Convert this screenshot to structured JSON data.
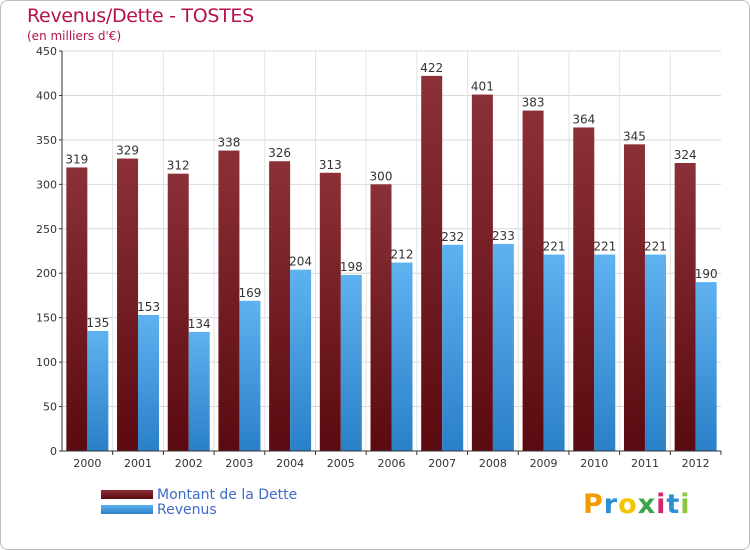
{
  "title": "Revenus/Dette - TOSTES",
  "subtitle": "(en milliers d'€)",
  "colors": {
    "dette": "#7a1e26",
    "revenus": "#3f9be6",
    "title": "#b5124f",
    "legend_text": "#3f6ac8"
  },
  "logo": {
    "text": "Proxiti",
    "letters": [
      "P",
      "r",
      "o",
      "x",
      "i",
      "t",
      "i"
    ],
    "letter_colors": [
      "#f29a00",
      "#2b8fd6",
      "#f2c500",
      "#3aa54a",
      "#d6246e",
      "#2b8fd6",
      "#8bc43f"
    ]
  },
  "chart_data": {
    "type": "bar",
    "categories": [
      "2000",
      "2001",
      "2002",
      "2003",
      "2004",
      "2005",
      "2006",
      "2007",
      "2008",
      "2009",
      "2010",
      "2011",
      "2012"
    ],
    "series": [
      {
        "name": "Montant de la Dette",
        "values": [
          319,
          329,
          312,
          338,
          326,
          313,
          300,
          422,
          401,
          383,
          364,
          345,
          324
        ]
      },
      {
        "name": "Revenus",
        "values": [
          135,
          153,
          134,
          169,
          204,
          198,
          212,
          232,
          233,
          221,
          221,
          221,
          190
        ]
      }
    ],
    "ylim": [
      0,
      450
    ],
    "yticks": [
      0,
      50,
      100,
      150,
      200,
      250,
      300,
      350,
      400,
      450
    ],
    "grid": true,
    "legend_position": "bottom-left"
  }
}
